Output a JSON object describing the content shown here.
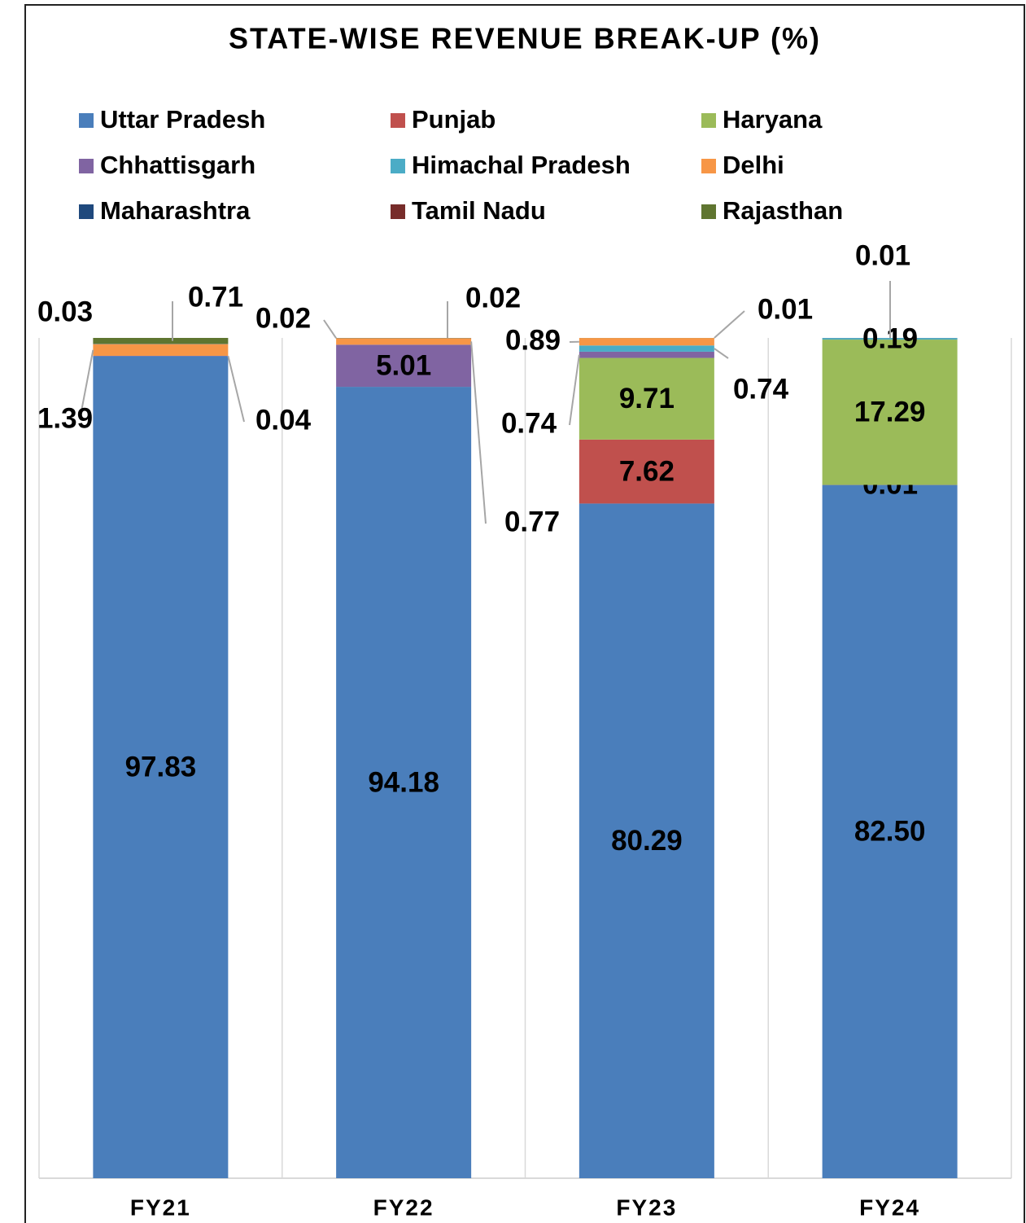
{
  "chart_data": {
    "type": "stacked-bar",
    "title": "STATE-WISE REVENUE BREAK-UP (%)",
    "categories": [
      "FY21",
      "FY22",
      "FY23",
      "FY24"
    ],
    "ylim": [
      0,
      100
    ],
    "grid": true,
    "series": [
      {
        "name": "Uttar Pradesh",
        "color": "#4a7ebb",
        "values": [
          97.83,
          94.18,
          80.29,
          82.5
        ],
        "value_labels": [
          "97.83",
          "94.18",
          "80.29",
          "82.50"
        ]
      },
      {
        "name": "Punjab",
        "color": "#c0504d",
        "values": [
          null,
          null,
          7.62,
          0.01
        ]
      },
      {
        "name": "Haryana",
        "color": "#9bbb59",
        "values": [
          null,
          null,
          9.71,
          17.29
        ]
      },
      {
        "name": "Chhattisgarh",
        "color": "#8064a2",
        "values": [
          0.04,
          5.01,
          0.74,
          null
        ]
      },
      {
        "name": "Himachal Pradesh",
        "color": "#4bacc6",
        "values": [
          null,
          null,
          0.74,
          0.19
        ]
      },
      {
        "name": "Delhi",
        "color": "#f79646",
        "values": [
          1.39,
          0.77,
          0.89,
          null
        ]
      },
      {
        "name": "Maharashtra",
        "color": "#1f497d",
        "values": [
          0.03,
          0.02,
          null,
          null
        ]
      },
      {
        "name": "Tamil Nadu",
        "color": "#772c2a",
        "values": [
          null,
          null,
          null,
          0.01
        ]
      },
      {
        "name": "Rajasthan",
        "color": "#5f7530",
        "values": [
          0.71,
          0.02,
          0.01,
          null
        ]
      }
    ]
  }
}
